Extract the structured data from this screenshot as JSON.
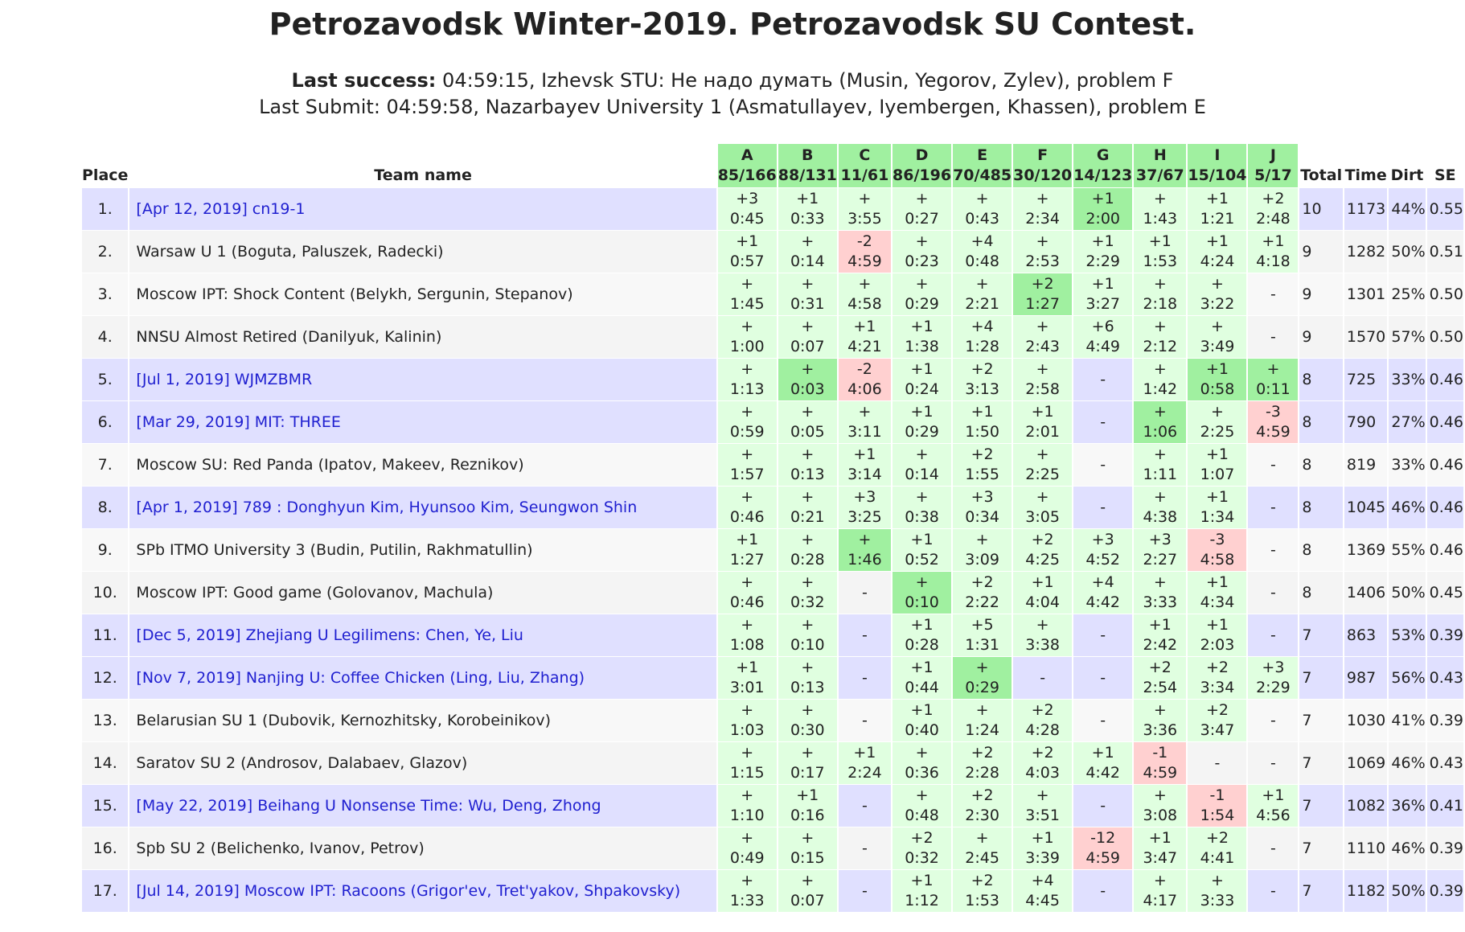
{
  "header": {
    "title": "Petrozavodsk Winter-2019. Petrozavodsk SU Contest.",
    "last_success": {
      "label": "Last success:",
      "text": "04:59:15, Izhevsk STU: Не надо думать (Musin, Yegorov, Zylev), problem F"
    },
    "last_submit": {
      "label": "Last Submit:",
      "text": "04:59:58, Nazarbayev University 1 (Asmatullayev, Iyembergen, Khassen), problem E"
    }
  },
  "table": {
    "columns": {
      "place": "Place",
      "team": "Team name",
      "total": "Total",
      "time": "Time",
      "dirt": "Dirt",
      "se": "SE"
    },
    "header_color": "#a0f0a0",
    "problems": [
      {
        "letter": "A",
        "stats": "85/166"
      },
      {
        "letter": "B",
        "stats": "88/131"
      },
      {
        "letter": "C",
        "stats": "11/61"
      },
      {
        "letter": "D",
        "stats": "86/196"
      },
      {
        "letter": "E",
        "stats": "70/485"
      },
      {
        "letter": "F",
        "stats": "30/120"
      },
      {
        "letter": "G",
        "stats": "14/123"
      },
      {
        "letter": "H",
        "stats": "37/67"
      },
      {
        "letter": "I",
        "stats": "15/104"
      },
      {
        "letter": "J",
        "stats": "5/17"
      }
    ],
    "rows": [
      {
        "place": "1.",
        "team": "[Apr 12, 2019] cn19-1",
        "highlight": true,
        "cells": [
          [
            "+3",
            "0:45",
            "#e0ffe0"
          ],
          [
            "+1",
            "0:33",
            "#e0ffe0"
          ],
          [
            "+",
            "3:55",
            "#e0ffe0"
          ],
          [
            "+",
            "0:27",
            "#e0ffe0"
          ],
          [
            "+",
            "0:43",
            "#e0ffe0"
          ],
          [
            "+",
            "2:34",
            "#e0ffe0"
          ],
          [
            "+1",
            "2:00",
            "#a0f0a0"
          ],
          [
            "+",
            "1:43",
            "#e0ffe0"
          ],
          [
            "+1",
            "1:21",
            "#e0ffe0"
          ],
          [
            "+2",
            "2:48",
            "#e0ffe0"
          ]
        ],
        "total": "10",
        "time": "1173",
        "dirt": "44%",
        "se": "0.55"
      },
      {
        "place": "2.",
        "team": "Warsaw U 1 (Boguta, Paluszek, Radecki)",
        "highlight": false,
        "cells": [
          [
            "+1",
            "0:57",
            "#e0ffe0"
          ],
          [
            "+",
            "0:14",
            "#e0ffe0"
          ],
          [
            "-2",
            "4:59",
            "#ffd0d0"
          ],
          [
            "+",
            "0:23",
            "#e0ffe0"
          ],
          [
            "+4",
            "0:48",
            "#e0ffe0"
          ],
          [
            "+",
            "2:53",
            "#e0ffe0"
          ],
          [
            "+1",
            "2:29",
            "#e0ffe0"
          ],
          [
            "+1",
            "1:53",
            "#e0ffe0"
          ],
          [
            "+1",
            "4:24",
            "#e0ffe0"
          ],
          [
            "+1",
            "4:18",
            "#e0ffe0"
          ]
        ],
        "total": "9",
        "time": "1282",
        "dirt": "50%",
        "se": "0.51"
      },
      {
        "place": "3.",
        "team": "Moscow IPT: Shock Content (Belykh, Sergunin, Stepanov)",
        "highlight": false,
        "cells": [
          [
            "+",
            "1:45",
            "#e0ffe0"
          ],
          [
            "+",
            "0:31",
            "#e0ffe0"
          ],
          [
            "+",
            "4:58",
            "#e0ffe0"
          ],
          [
            "+",
            "0:29",
            "#e0ffe0"
          ],
          [
            "+",
            "2:21",
            "#e0ffe0"
          ],
          [
            "+2",
            "1:27",
            "#a0f0a0"
          ],
          [
            "+1",
            "3:27",
            "#e0ffe0"
          ],
          [
            "+",
            "2:18",
            "#e0ffe0"
          ],
          [
            "+",
            "3:22",
            "#e0ffe0"
          ],
          [
            "-"
          ]
        ],
        "total": "9",
        "time": "1301",
        "dirt": "25%",
        "se": "0.50"
      },
      {
        "place": "4.",
        "team": "NNSU Almost Retired (Danilyuk, Kalinin)",
        "highlight": false,
        "cells": [
          [
            "+",
            "1:00",
            "#e0ffe0"
          ],
          [
            "+",
            "0:07",
            "#e0ffe0"
          ],
          [
            "+1",
            "4:21",
            "#e0ffe0"
          ],
          [
            "+1",
            "1:38",
            "#e0ffe0"
          ],
          [
            "+4",
            "1:28",
            "#e0ffe0"
          ],
          [
            "+",
            "2:43",
            "#e0ffe0"
          ],
          [
            "+6",
            "4:49",
            "#e0ffe0"
          ],
          [
            "+",
            "2:12",
            "#e0ffe0"
          ],
          [
            "+",
            "3:49",
            "#e0ffe0"
          ],
          [
            "-"
          ]
        ],
        "total": "9",
        "time": "1570",
        "dirt": "57%",
        "se": "0.50"
      },
      {
        "place": "5.",
        "team": "[Jul 1, 2019] WJMZBMR",
        "highlight": true,
        "cells": [
          [
            "+",
            "1:13",
            "#e0ffe0"
          ],
          [
            "+",
            "0:03",
            "#a0f0a0"
          ],
          [
            "-2",
            "4:06",
            "#ffd0d0"
          ],
          [
            "+1",
            "0:24",
            "#e0ffe0"
          ],
          [
            "+2",
            "3:13",
            "#e0ffe0"
          ],
          [
            "+",
            "2:58",
            "#e0ffe0"
          ],
          [
            "-"
          ],
          [
            "+",
            "1:42",
            "#e0ffe0"
          ],
          [
            "+1",
            "0:58",
            "#a0f0a0"
          ],
          [
            "+",
            "0:11",
            "#a0f0a0"
          ]
        ],
        "total": "8",
        "time": "725",
        "dirt": "33%",
        "se": "0.46"
      },
      {
        "place": "6.",
        "team": "[Mar 29, 2019] MIT: THREE",
        "highlight": true,
        "cells": [
          [
            "+",
            "0:59",
            "#e0ffe0"
          ],
          [
            "+",
            "0:05",
            "#e0ffe0"
          ],
          [
            "+",
            "3:11",
            "#e0ffe0"
          ],
          [
            "+1",
            "0:29",
            "#e0ffe0"
          ],
          [
            "+1",
            "1:50",
            "#e0ffe0"
          ],
          [
            "+1",
            "2:01",
            "#e0ffe0"
          ],
          [
            "-"
          ],
          [
            "+",
            "1:06",
            "#a0f0a0"
          ],
          [
            "+",
            "2:25",
            "#e0ffe0"
          ],
          [
            "-3",
            "4:59",
            "#ffd0d0"
          ]
        ],
        "total": "8",
        "time": "790",
        "dirt": "27%",
        "se": "0.46"
      },
      {
        "place": "7.",
        "team": "Moscow SU: Red Panda (Ipatov, Makeev, Reznikov)",
        "highlight": false,
        "cells": [
          [
            "+",
            "1:57",
            "#e0ffe0"
          ],
          [
            "+",
            "0:13",
            "#e0ffe0"
          ],
          [
            "+1",
            "3:14",
            "#e0ffe0"
          ],
          [
            "+",
            "0:14",
            "#e0ffe0"
          ],
          [
            "+2",
            "1:55",
            "#e0ffe0"
          ],
          [
            "+",
            "2:25",
            "#e0ffe0"
          ],
          [
            "-"
          ],
          [
            "+",
            "1:11",
            "#e0ffe0"
          ],
          [
            "+1",
            "1:07",
            "#e0ffe0"
          ],
          [
            "-"
          ]
        ],
        "total": "8",
        "time": "819",
        "dirt": "33%",
        "se": "0.46"
      },
      {
        "place": "8.",
        "team": "[Apr 1, 2019] 789 : Donghyun Kim, Hyunsoo Kim, Seungwon Shin",
        "highlight": true,
        "cells": [
          [
            "+",
            "0:46",
            "#e0ffe0"
          ],
          [
            "+",
            "0:21",
            "#e0ffe0"
          ],
          [
            "+3",
            "3:25",
            "#e0ffe0"
          ],
          [
            "+",
            "0:38",
            "#e0ffe0"
          ],
          [
            "+3",
            "0:34",
            "#e0ffe0"
          ],
          [
            "+",
            "3:05",
            "#e0ffe0"
          ],
          [
            "-"
          ],
          [
            "+",
            "4:38",
            "#e0ffe0"
          ],
          [
            "+1",
            "1:34",
            "#e0ffe0"
          ],
          [
            "-"
          ]
        ],
        "total": "8",
        "time": "1045",
        "dirt": "46%",
        "se": "0.46"
      },
      {
        "place": "9.",
        "team": "SPb ITMO University 3 (Budin, Putilin, Rakhmatullin)",
        "highlight": false,
        "cells": [
          [
            "+1",
            "1:27",
            "#e0ffe0"
          ],
          [
            "+",
            "0:28",
            "#e0ffe0"
          ],
          [
            "+",
            "1:46",
            "#a0f0a0"
          ],
          [
            "+1",
            "0:52",
            "#e0ffe0"
          ],
          [
            "+",
            "3:09",
            "#e0ffe0"
          ],
          [
            "+2",
            "4:25",
            "#e0ffe0"
          ],
          [
            "+3",
            "4:52",
            "#e0ffe0"
          ],
          [
            "+3",
            "2:27",
            "#e0ffe0"
          ],
          [
            "-3",
            "4:58",
            "#ffd0d0"
          ],
          [
            "-"
          ]
        ],
        "total": "8",
        "time": "1369",
        "dirt": "55%",
        "se": "0.46"
      },
      {
        "place": "10.",
        "team": "Moscow IPT: Good game (Golovanov, Machula)",
        "highlight": false,
        "cells": [
          [
            "+",
            "0:46",
            "#e0ffe0"
          ],
          [
            "+",
            "0:32",
            "#e0ffe0"
          ],
          [
            "-"
          ],
          [
            "+",
            "0:10",
            "#a0f0a0"
          ],
          [
            "+2",
            "2:22",
            "#e0ffe0"
          ],
          [
            "+1",
            "4:04",
            "#e0ffe0"
          ],
          [
            "+4",
            "4:42",
            "#e0ffe0"
          ],
          [
            "+",
            "3:33",
            "#e0ffe0"
          ],
          [
            "+1",
            "4:34",
            "#e0ffe0"
          ],
          [
            "-"
          ]
        ],
        "total": "8",
        "time": "1406",
        "dirt": "50%",
        "se": "0.45"
      },
      {
        "place": "11.",
        "team": "[Dec 5, 2019] Zhejiang U Legilimens: Chen, Ye, Liu",
        "highlight": true,
        "cells": [
          [
            "+",
            "1:08",
            "#e0ffe0"
          ],
          [
            "+",
            "0:10",
            "#e0ffe0"
          ],
          [
            "-"
          ],
          [
            "+1",
            "0:28",
            "#e0ffe0"
          ],
          [
            "+5",
            "1:31",
            "#e0ffe0"
          ],
          [
            "+",
            "3:38",
            "#e0ffe0"
          ],
          [
            "-"
          ],
          [
            "+1",
            "2:42",
            "#e0ffe0"
          ],
          [
            "+1",
            "2:03",
            "#e0ffe0"
          ],
          [
            "-"
          ]
        ],
        "total": "7",
        "time": "863",
        "dirt": "53%",
        "se": "0.39"
      },
      {
        "place": "12.",
        "team": "[Nov 7, 2019] Nanjing U: Coffee Chicken (Ling, Liu, Zhang)",
        "highlight": true,
        "cells": [
          [
            "+1",
            "3:01",
            "#e0ffe0"
          ],
          [
            "+",
            "0:13",
            "#e0ffe0"
          ],
          [
            "-"
          ],
          [
            "+1",
            "0:44",
            "#e0ffe0"
          ],
          [
            "+",
            "0:29",
            "#a0f0a0"
          ],
          [
            "-"
          ],
          [
            "-"
          ],
          [
            "+2",
            "2:54",
            "#e0ffe0"
          ],
          [
            "+2",
            "3:34",
            "#e0ffe0"
          ],
          [
            "+3",
            "2:29",
            "#e0ffe0"
          ]
        ],
        "total": "7",
        "time": "987",
        "dirt": "56%",
        "se": "0.43"
      },
      {
        "place": "13.",
        "team": "Belarusian SU 1 (Dubovik, Kernozhitsky, Korobeinikov)",
        "highlight": false,
        "cells": [
          [
            "+",
            "1:03",
            "#e0ffe0"
          ],
          [
            "+",
            "0:30",
            "#e0ffe0"
          ],
          [
            "-"
          ],
          [
            "+1",
            "0:40",
            "#e0ffe0"
          ],
          [
            "+",
            "1:24",
            "#e0ffe0"
          ],
          [
            "+2",
            "4:28",
            "#e0ffe0"
          ],
          [
            "-"
          ],
          [
            "+",
            "3:36",
            "#e0ffe0"
          ],
          [
            "+2",
            "3:47",
            "#e0ffe0"
          ],
          [
            "-"
          ]
        ],
        "total": "7",
        "time": "1030",
        "dirt": "41%",
        "se": "0.39"
      },
      {
        "place": "14.",
        "team": "Saratov SU 2 (Androsov, Dalabaev, Glazov)",
        "highlight": false,
        "cells": [
          [
            "+",
            "1:15",
            "#e0ffe0"
          ],
          [
            "+",
            "0:17",
            "#e0ffe0"
          ],
          [
            "+1",
            "2:24",
            "#e0ffe0"
          ],
          [
            "+",
            "0:36",
            "#e0ffe0"
          ],
          [
            "+2",
            "2:28",
            "#e0ffe0"
          ],
          [
            "+2",
            "4:03",
            "#e0ffe0"
          ],
          [
            "+1",
            "4:42",
            "#e0ffe0"
          ],
          [
            "-1",
            "4:59",
            "#ffd0d0"
          ],
          [
            "-"
          ],
          [
            "-"
          ]
        ],
        "total": "7",
        "time": "1069",
        "dirt": "46%",
        "se": "0.43"
      },
      {
        "place": "15.",
        "team": "[May 22, 2019] Beihang U Nonsense Time: Wu, Deng, Zhong",
        "highlight": true,
        "cells": [
          [
            "+",
            "1:10",
            "#e0ffe0"
          ],
          [
            "+1",
            "0:16",
            "#e0ffe0"
          ],
          [
            "-"
          ],
          [
            "+",
            "0:48",
            "#e0ffe0"
          ],
          [
            "+2",
            "2:30",
            "#e0ffe0"
          ],
          [
            "+",
            "3:51",
            "#e0ffe0"
          ],
          [
            "-"
          ],
          [
            "+",
            "3:08",
            "#e0ffe0"
          ],
          [
            "-1",
            "1:54",
            "#ffd0d0"
          ],
          [
            "+1",
            "4:56",
            "#e0ffe0"
          ]
        ],
        "total": "7",
        "time": "1082",
        "dirt": "36%",
        "se": "0.41"
      },
      {
        "place": "16.",
        "team": "Spb SU 2 (Belichenko, Ivanov, Petrov)",
        "highlight": false,
        "cells": [
          [
            "+",
            "0:49",
            "#e0ffe0"
          ],
          [
            "+",
            "0:15",
            "#e0ffe0"
          ],
          [
            "-"
          ],
          [
            "+2",
            "0:32",
            "#e0ffe0"
          ],
          [
            "+",
            "2:45",
            "#e0ffe0"
          ],
          [
            "+1",
            "3:39",
            "#e0ffe0"
          ],
          [
            "-12",
            "4:59",
            "#ffd0d0"
          ],
          [
            "+1",
            "3:47",
            "#e0ffe0"
          ],
          [
            "+2",
            "4:41",
            "#e0ffe0"
          ],
          [
            "-"
          ]
        ],
        "total": "7",
        "time": "1110",
        "dirt": "46%",
        "se": "0.39"
      },
      {
        "place": "17.",
        "team": "[Jul 14, 2019] Moscow IPT: Racoons (Grigor'ev, Tret'yakov, Shpakovsky)",
        "highlight": true,
        "cells": [
          [
            "+",
            "1:33",
            "#e0ffe0"
          ],
          [
            "+",
            "0:07",
            "#e0ffe0"
          ],
          [
            "-"
          ],
          [
            "+1",
            "1:12",
            "#e0ffe0"
          ],
          [
            "+2",
            "1:53",
            "#e0ffe0"
          ],
          [
            "+4",
            "4:45",
            "#e0ffe0"
          ],
          [
            "-"
          ],
          [
            "+",
            "4:17",
            "#e0ffe0"
          ],
          [
            "+",
            "3:33",
            "#e0ffe0"
          ],
          [
            "-"
          ]
        ],
        "total": "7",
        "time": "1182",
        "dirt": "50%",
        "se": "0.39"
      }
    ]
  }
}
